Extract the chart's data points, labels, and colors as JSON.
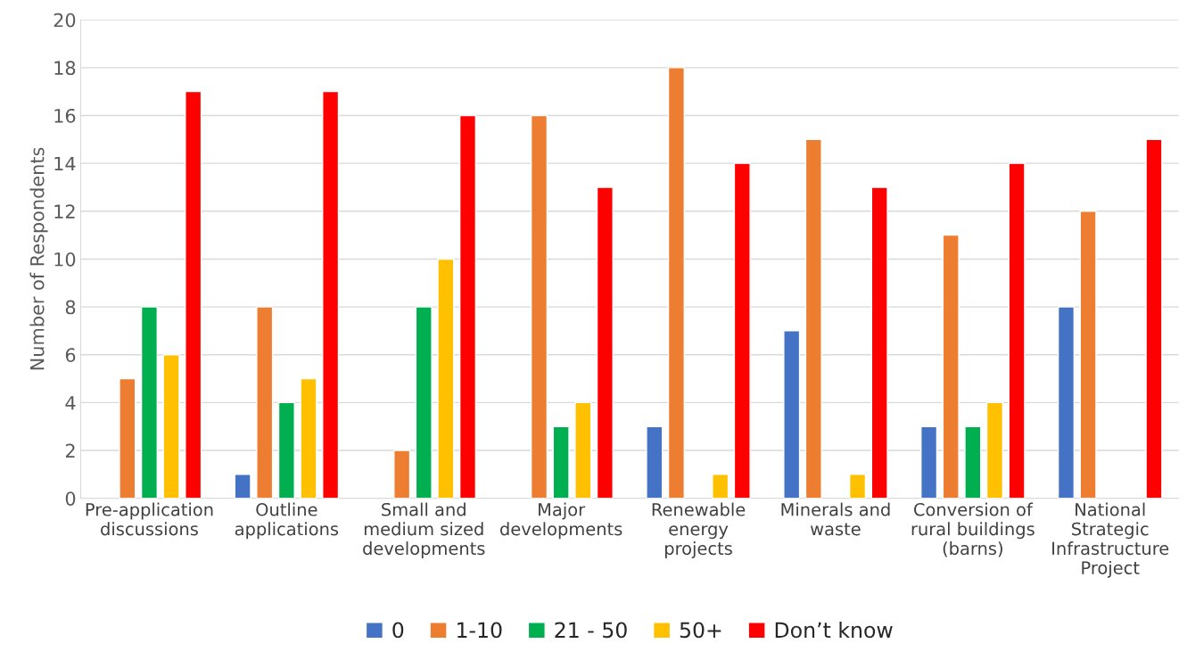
{
  "chart_data": {
    "type": "bar",
    "categories": [
      "Pre-application\ndiscussions",
      "Outline\napplications",
      "Small and\nmedium sized\ndevelopments",
      "Major\ndevelopments",
      "Renewable\nenergy\nprojects",
      "Minerals and\nwaste",
      "Conversion of\nrural buildings\n(barns)",
      "National\nStrategic\nInfrastructure\nProject"
    ],
    "series": [
      {
        "name": "0",
        "color": "#4472c4",
        "values": [
          null,
          1,
          null,
          null,
          3,
          7,
          3,
          8
        ]
      },
      {
        "name": "1-10",
        "color": "#ed7d31",
        "values": [
          5,
          8,
          2,
          16,
          18,
          15,
          11,
          12
        ]
      },
      {
        "name": "21 - 50",
        "color": "#00b050",
        "values": [
          8,
          4,
          8,
          3,
          null,
          null,
          3,
          null
        ]
      },
      {
        "name": "50+",
        "color": "#ffc000",
        "values": [
          6,
          5,
          10,
          4,
          1,
          1,
          4,
          null
        ]
      },
      {
        "name": "Don’t know",
        "color": "#ff0000",
        "values": [
          17,
          17,
          16,
          13,
          14,
          13,
          14,
          15
        ]
      }
    ],
    "ylabel": "Number of Respondents",
    "ylim": [
      0,
      20
    ],
    "yticks": [
      0,
      2,
      4,
      6,
      8,
      10,
      12,
      14,
      16,
      18,
      20
    ],
    "grid": "y",
    "legend": "bottom"
  }
}
